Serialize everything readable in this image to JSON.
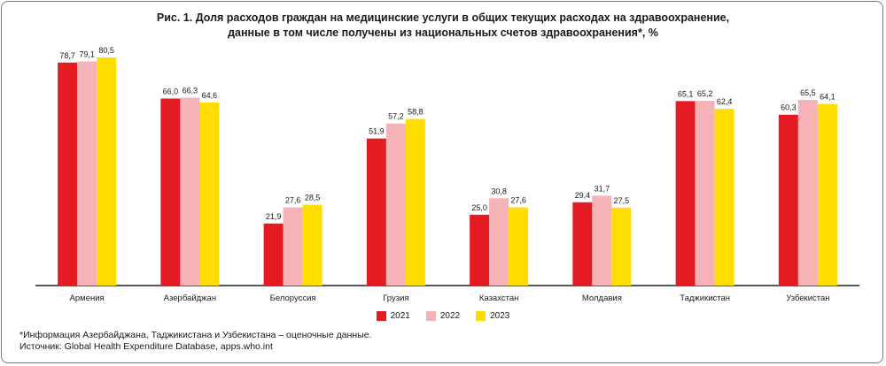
{
  "title_lines": [
    "Рис. 1. Доля расходов граждан на медицинские услуги в общих текущих расходах на здравоохранение,",
    "данные в том числе получены из национальных счетов здравоохранения*, %"
  ],
  "chart_data": {
    "type": "bar",
    "title": "Рис. 1. Доля расходов граждан на медицинские услуги в общих текущих расходах на здравоохранение, данные в том числе получены из национальных счетов здравоохранения*, %",
    "categories": [
      "Армения",
      "Азербайджан",
      "Белоруссия",
      "Грузия",
      "Казахстан",
      "Молдавия",
      "Таджикистан",
      "Узбекистан"
    ],
    "series": [
      {
        "name": "2021",
        "color": "#e31b23",
        "values": [
          78.7,
          66.0,
          21.9,
          51.9,
          25.0,
          29.4,
          65.1,
          60.3
        ],
        "labels": [
          "78,7",
          "66,0",
          "21,9",
          "51,9",
          "25,0",
          "29,4",
          "65,1",
          "60,3"
        ]
      },
      {
        "name": "2022",
        "color": "#f5b3b7",
        "values": [
          79.1,
          66.3,
          27.6,
          57.2,
          30.8,
          31.7,
          65.2,
          65.5
        ],
        "labels": [
          "79,1",
          "66,3",
          "27,6",
          "57,2",
          "30,8",
          "31,7",
          "65,2",
          "65,5"
        ]
      },
      {
        "name": "2023",
        "color": "#ffdd00",
        "values": [
          80.5,
          64.6,
          28.5,
          58.8,
          27.6,
          27.5,
          62.4,
          64.1
        ],
        "labels": [
          "80,5",
          "64,6",
          "28,5",
          "58,8",
          "27,6",
          "27,5",
          "62,4",
          "64,1"
        ]
      }
    ],
    "ylim": [
      0,
      80.5
    ],
    "xlabel": "",
    "ylabel": "",
    "legend_position": "bottom"
  },
  "footnote": {
    "note": "*Информация Азербайджана, Таджикистана и Узбекистана – оценочные данные.",
    "source": "Источник: Global Health Expenditure Database, apps.who.int"
  }
}
